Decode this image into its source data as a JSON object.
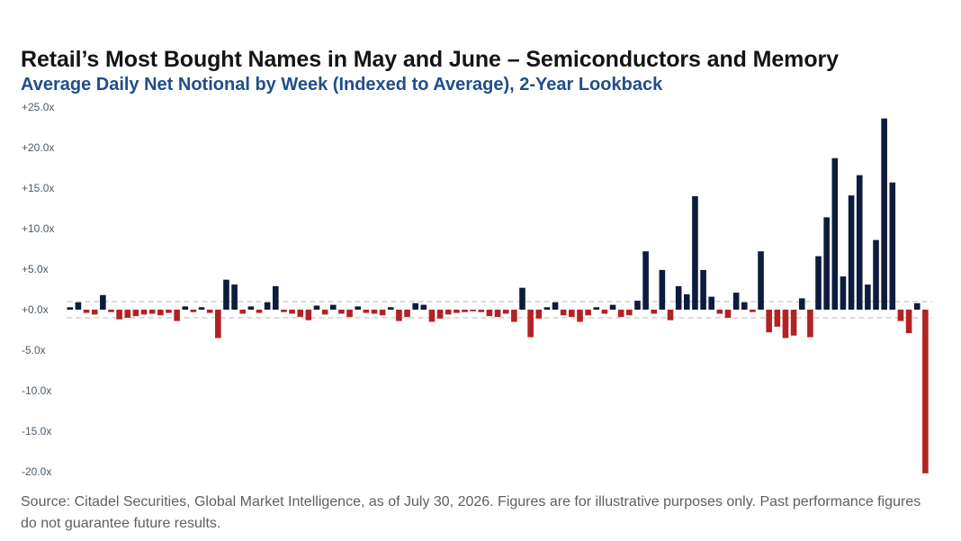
{
  "title": "Retail’s Most Bought Names in May and June – Semiconductors and Memory",
  "subtitle": "Average Daily Net Notional by Week (Indexed to Average), 2-Year Lookback",
  "source": "Source: Citadel Securities, Global Market Intelligence, as of July 30, 2026. Figures are for illustrative purposes only. Past performance figures do not guarantee future results.",
  "colors": {
    "positive": "#0d1b3e",
    "negative": "#b22222",
    "tick": "#4a5a6a",
    "band": "#b8b8b8"
  },
  "chart_data": {
    "type": "bar",
    "title": "",
    "xlabel": "",
    "ylabel": "",
    "ylim": [
      -20,
      25
    ],
    "yticks": [
      "+25.0x",
      "+20.0x",
      "+15.0x",
      "+10.0x",
      "+5.0x",
      "+0.0x",
      "-5.0x",
      "-10.0x",
      "-15.0x",
      "-20.0x"
    ],
    "ytick_values": [
      25,
      20,
      15,
      10,
      5,
      0,
      -5,
      -10,
      -15,
      -20
    ],
    "reference_band": [
      -1,
      1
    ],
    "grid": false,
    "values": [
      0.3,
      0.9,
      -0.4,
      -0.6,
      1.8,
      -0.3,
      -1.2,
      -1.0,
      -0.8,
      -0.6,
      -0.5,
      -0.7,
      -0.4,
      -1.4,
      0.4,
      -0.3,
      0.3,
      -0.4,
      -3.5,
      3.7,
      3.1,
      -0.5,
      0.4,
      -0.4,
      0.9,
      2.9,
      -0.3,
      -0.5,
      -0.9,
      -1.3,
      0.5,
      -0.6,
      0.6,
      -0.5,
      -0.9,
      0.4,
      -0.4,
      -0.5,
      -0.7,
      0.3,
      -1.4,
      -0.9,
      0.8,
      0.6,
      -1.5,
      -1.1,
      -0.6,
      -0.4,
      -0.3,
      -0.2,
      -0.3,
      -0.8,
      -0.9,
      -0.5,
      -1.5,
      2.7,
      -3.4,
      -1.1,
      0.3,
      0.9,
      -0.7,
      -0.9,
      -1.5,
      -0.7,
      0.3,
      -0.5,
      0.6,
      -0.9,
      -0.7,
      1.1,
      7.2,
      -0.5,
      4.9,
      -1.3,
      2.9,
      1.9,
      14.0,
      4.9,
      1.6,
      -0.5,
      -1.0,
      2.1,
      0.9,
      -0.3,
      7.2,
      -2.8,
      -2.1,
      -3.5,
      -3.2,
      1.4,
      -3.4,
      6.6,
      11.4,
      18.7,
      4.1,
      14.1,
      16.6,
      3.1,
      8.6,
      23.6,
      15.7,
      -1.4,
      -2.9,
      0.8,
      -20.2
    ]
  }
}
